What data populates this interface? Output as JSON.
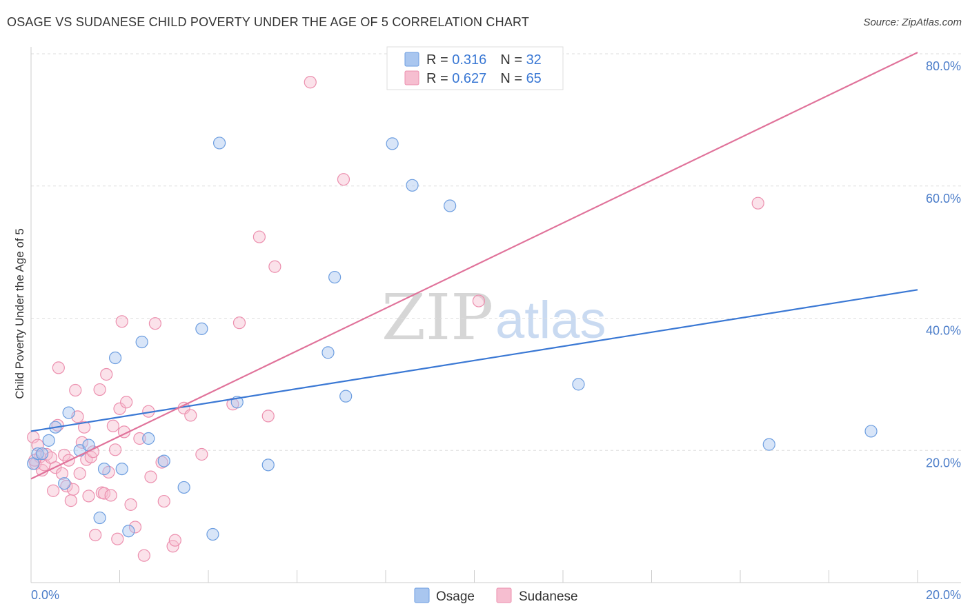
{
  "title": "OSAGE VS SUDANESE CHILD POVERTY UNDER THE AGE OF 5 CORRELATION CHART",
  "source": "Source: ZipAtlas.com",
  "watermark": {
    "zip": "ZIP",
    "atlas": "atlas"
  },
  "colors": {
    "osage_fill": "#a9c6ef",
    "osage_stroke": "#6d9ee0",
    "osage_line": "#3a78d4",
    "sudanese_fill": "#f6bed0",
    "sudanese_stroke": "#ec8fae",
    "sudanese_line": "#e0729a",
    "grid": "#dddddd",
    "tick_text": "#4a7cc9"
  },
  "stats": [
    {
      "r_label": "R = ",
      "r_value": "0.316",
      "n_label": "N = ",
      "n_value": "32"
    },
    {
      "r_label": "R = ",
      "r_value": "0.627",
      "n_label": "N = ",
      "n_value": "65"
    }
  ],
  "chart_data": {
    "type": "scatter",
    "title": "OSAGE VS SUDANESE CHILD POVERTY UNDER THE AGE OF 5 CORRELATION CHART",
    "xlabel": "",
    "ylabel": "Child Poverty Under the Age of 5",
    "xlim": [
      0,
      20
    ],
    "ylim": [
      0,
      80
    ],
    "y_ticks": [
      {
        "value": 20,
        "label": "20.0%"
      },
      {
        "value": 40,
        "label": "40.0%"
      },
      {
        "value": 60,
        "label": "60.0%"
      },
      {
        "value": 80,
        "label": "80.0%"
      }
    ],
    "x_tick_labels": [
      {
        "value": 0,
        "label": "0.0%"
      },
      {
        "value": 20,
        "label": "20.0%"
      }
    ],
    "x_minor_ticks": [
      0,
      2,
      4,
      6,
      8,
      10,
      12,
      14,
      16,
      18,
      20
    ],
    "legend_position": "top-center",
    "series": [
      {
        "name": "Osage",
        "trend": {
          "x0": 0,
          "y0": 22.9,
          "x1": 20,
          "y1": 44.3
        },
        "points": [
          [
            0.05,
            18.0
          ],
          [
            0.15,
            19.5
          ],
          [
            0.25,
            19.5
          ],
          [
            0.4,
            21.5
          ],
          [
            0.55,
            23.5
          ],
          [
            0.85,
            25.7
          ],
          [
            0.75,
            15.0
          ],
          [
            1.1,
            20.0
          ],
          [
            1.3,
            20.8
          ],
          [
            1.55,
            9.8
          ],
          [
            1.65,
            17.2
          ],
          [
            1.9,
            34.0
          ],
          [
            2.05,
            17.2
          ],
          [
            2.2,
            7.8
          ],
          [
            2.5,
            36.4
          ],
          [
            2.65,
            21.8
          ],
          [
            3.0,
            18.4
          ],
          [
            3.45,
            14.4
          ],
          [
            3.85,
            38.4
          ],
          [
            4.1,
            7.3
          ],
          [
            4.25,
            66.5
          ],
          [
            4.65,
            27.3
          ],
          [
            5.35,
            17.8
          ],
          [
            6.7,
            34.8
          ],
          [
            6.85,
            46.2
          ],
          [
            7.1,
            28.2
          ],
          [
            8.15,
            66.4
          ],
          [
            8.6,
            60.1
          ],
          [
            9.45,
            57.0
          ],
          [
            12.35,
            30.0
          ],
          [
            16.65,
            20.9
          ],
          [
            18.95,
            22.9
          ]
        ]
      },
      {
        "name": "Sudanese",
        "trend": {
          "x0": 0,
          "y0": 15.7,
          "x1": 20,
          "y1": 80.2
        },
        "points": [
          [
            0.05,
            22.0
          ],
          [
            0.1,
            18.0
          ],
          [
            0.15,
            20.8
          ],
          [
            0.2,
            19.0
          ],
          [
            0.25,
            17.0
          ],
          [
            0.3,
            17.8
          ],
          [
            0.35,
            19.4
          ],
          [
            0.45,
            18.9
          ],
          [
            0.5,
            13.9
          ],
          [
            0.55,
            17.4
          ],
          [
            0.6,
            23.8
          ],
          [
            0.62,
            32.5
          ],
          [
            0.7,
            16.5
          ],
          [
            0.75,
            19.3
          ],
          [
            0.8,
            14.6
          ],
          [
            0.85,
            18.5
          ],
          [
            0.9,
            12.4
          ],
          [
            0.95,
            14.1
          ],
          [
            1.0,
            29.1
          ],
          [
            1.05,
            25.1
          ],
          [
            1.1,
            16.5
          ],
          [
            1.15,
            21.2
          ],
          [
            1.2,
            23.5
          ],
          [
            1.25,
            18.6
          ],
          [
            1.3,
            13.1
          ],
          [
            1.35,
            19.0
          ],
          [
            1.4,
            19.8
          ],
          [
            1.45,
            7.2
          ],
          [
            1.55,
            29.2
          ],
          [
            1.6,
            13.6
          ],
          [
            1.65,
            13.5
          ],
          [
            1.7,
            31.5
          ],
          [
            1.75,
            16.7
          ],
          [
            1.8,
            13.2
          ],
          [
            1.85,
            23.7
          ],
          [
            1.9,
            20.1
          ],
          [
            1.95,
            6.6
          ],
          [
            2.0,
            26.3
          ],
          [
            2.05,
            39.5
          ],
          [
            2.1,
            22.8
          ],
          [
            2.15,
            27.3
          ],
          [
            2.25,
            11.8
          ],
          [
            2.35,
            8.4
          ],
          [
            2.45,
            21.8
          ],
          [
            2.55,
            4.1
          ],
          [
            2.65,
            25.9
          ],
          [
            2.7,
            16.0
          ],
          [
            2.8,
            39.2
          ],
          [
            2.95,
            18.2
          ],
          [
            3.0,
            12.3
          ],
          [
            3.2,
            5.5
          ],
          [
            3.25,
            6.4
          ],
          [
            3.45,
            26.4
          ],
          [
            3.6,
            25.3
          ],
          [
            3.85,
            19.4
          ],
          [
            4.55,
            27.0
          ],
          [
            4.7,
            39.3
          ],
          [
            5.15,
            52.3
          ],
          [
            5.35,
            25.2
          ],
          [
            5.5,
            47.8
          ],
          [
            6.3,
            75.7
          ],
          [
            7.05,
            61.0
          ],
          [
            10.1,
            42.6
          ],
          [
            16.4,
            57.4
          ],
          [
            0.08,
            18.5
          ]
        ]
      }
    ]
  },
  "bottom_legend": [
    {
      "key": "osage",
      "label": "Osage"
    },
    {
      "key": "sudanese",
      "label": "Sudanese"
    }
  ]
}
